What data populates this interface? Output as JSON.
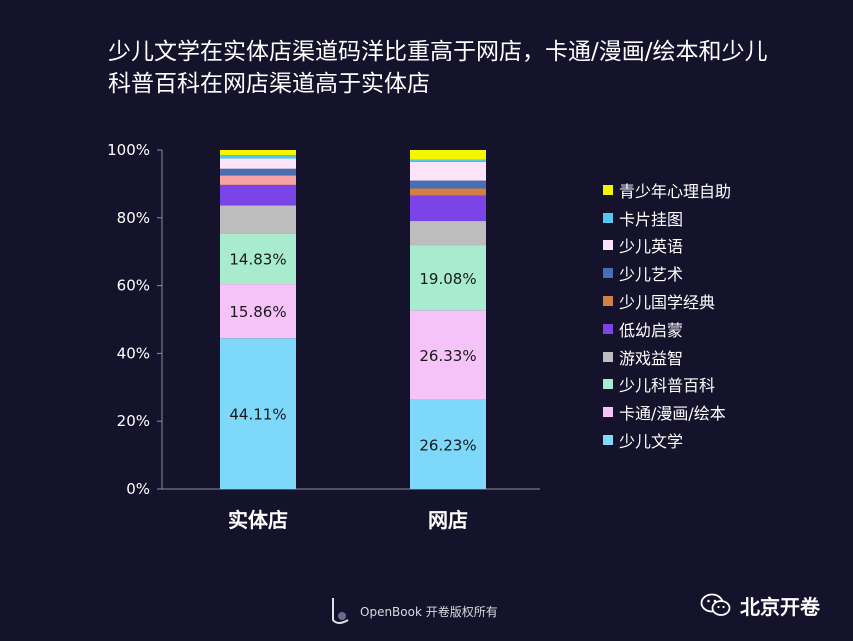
{
  "title": {
    "line1": "少儿文学在实体店渠道码洋比重高于网店，卡通/漫画/绘本和少儿",
    "line2": "科普百科在网店渠道高于实体店"
  },
  "chart_data": {
    "type": "bar",
    "stacked": true,
    "categories": [
      "实体店",
      "网店"
    ],
    "yticks": [
      "0%",
      "20%",
      "40%",
      "60%",
      "80%",
      "100%"
    ],
    "ylim": [
      0,
      100
    ],
    "grid": false,
    "legend_position": "right",
    "series": [
      {
        "name": "少儿文学",
        "color": "#7dd8f9",
        "values": [
          44.11,
          26.23
        ],
        "labels": [
          "44.11%",
          "26.23%"
        ]
      },
      {
        "name": "卡通/漫画/绘本",
        "color": "#f6c3f8",
        "values": [
          15.86,
          26.33
        ],
        "labels": [
          "15.86%",
          "26.33%"
        ]
      },
      {
        "name": "少儿科普百科",
        "color": "#a9ebcf",
        "values": [
          14.83,
          19.08
        ],
        "labels": [
          "14.83%",
          "19.08%"
        ]
      },
      {
        "name": "游戏益智",
        "color": "#bdbdbd",
        "values": [
          8.2,
          7.2
        ],
        "labels": [
          "",
          ""
        ]
      },
      {
        "name": "低幼启蒙",
        "color": "#7a44e6",
        "values": [
          6.0,
          7.5
        ],
        "labels": [
          "",
          ""
        ]
      },
      {
        "name": "少儿国学经典",
        "color": "#d17f44",
        "values": [
          0.3,
          2.1
        ],
        "labels": [
          "",
          ""
        ]
      },
      {
        "name": "少儿艺术",
        "color": "#4a6eb5",
        "values": [
          1.8,
          2.3
        ],
        "labels": [
          "",
          ""
        ]
      },
      {
        "name": "少儿英语",
        "color": "#fbe4f7",
        "values": [
          3.0,
          5.5
        ],
        "labels": [
          "",
          ""
        ]
      },
      {
        "name": "卡片挂图",
        "color": "#55c7f0",
        "values": [
          1.0,
          0.7
        ],
        "labels": [
          "",
          ""
        ]
      },
      {
        "name": "青少年心理自助",
        "color": "#f5f500",
        "values": [
          1.5,
          2.8
        ],
        "labels": [
          "",
          ""
        ]
      }
    ],
    "extra_segment_colors": {
      "实体店_salmon": "#f7a3a3"
    }
  },
  "legend_items": [
    {
      "label": "青少年心理自助",
      "color": "#f5f500"
    },
    {
      "label": "卡片挂图",
      "color": "#55c7f0"
    },
    {
      "label": "少儿英语",
      "color": "#fbe4f7"
    },
    {
      "label": "少儿艺术",
      "color": "#4a6eb5"
    },
    {
      "label": "少儿国学经典",
      "color": "#d17f44"
    },
    {
      "label": "低幼启蒙",
      "color": "#7a44e6"
    },
    {
      "label": "游戏益智",
      "color": "#bdbdbd"
    },
    {
      "label": "少儿科普百科",
      "color": "#a9ebcf"
    },
    {
      "label": "卡通/漫画/绘本",
      "color": "#f6c3f8"
    },
    {
      "label": "少儿文学",
      "color": "#7dd8f9"
    }
  ],
  "footer": {
    "text": "OpenBook 开卷版权所有",
    "logo_icon": "openbook-logo-icon"
  },
  "watermark": {
    "text": "北京开卷",
    "icon": "wechat-icon"
  }
}
